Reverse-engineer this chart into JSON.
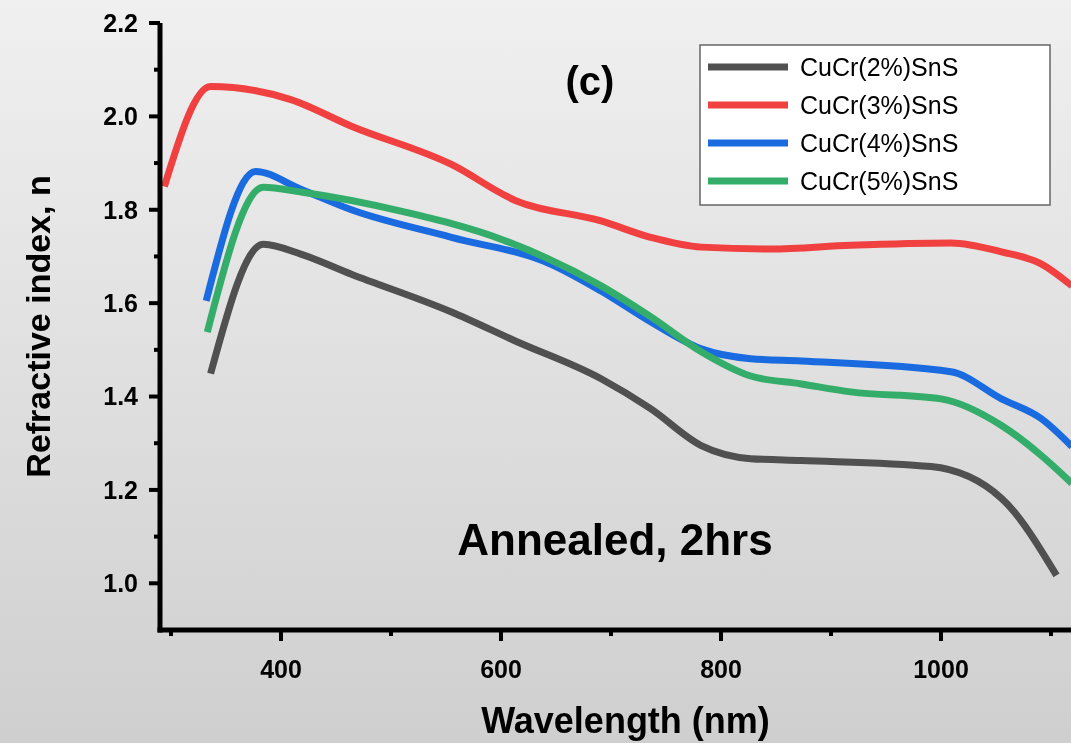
{
  "chart_data": {
    "type": "line",
    "xlabel": "Wavelength (nm)",
    "ylabel": "Refractive index, n",
    "xlim": [
      290,
      1120
    ],
    "ylim": [
      0.9,
      2.2
    ],
    "xticks": [
      {
        "value": 300,
        "label": null
      },
      400,
      {
        "value": 500,
        "label": null
      },
      600,
      {
        "value": 700,
        "label": null
      },
      800,
      {
        "value": 900,
        "label": null
      },
      1000,
      {
        "value": 1100,
        "label": null
      }
    ],
    "yticks": [
      {
        "value": 1,
        "label": "1.0"
      },
      {
        "value": 1.1,
        "label": null
      },
      1.2,
      {
        "value": 1.3,
        "label": null
      },
      1.4,
      {
        "value": 1.5,
        "label": null
      },
      1.6,
      {
        "value": 1.7,
        "label": null
      },
      1.8,
      {
        "value": 1.9,
        "label": null
      },
      {
        "value": 2,
        "label": "2.0"
      },
      {
        "value": 2.1,
        "label": null
      },
      2.2
    ],
    "legend": "top right",
    "grid": false,
    "marker": "none",
    "line_style": "solid",
    "annotations": [
      "(c)",
      "Annealed, 2hrs"
    ],
    "series": [
      {
        "name": "CuCr(2%)SnS",
        "color": "#505050",
        "x": [
          336,
          384,
          418,
          464,
          555,
          613,
          691,
          736,
          782,
          827,
          873,
          991,
          1055,
          1105
        ],
        "values": [
          1.449,
          1.726,
          1.705,
          1.662,
          1.581,
          1.519,
          1.438,
          1.374,
          1.295,
          1.267,
          1.263,
          1.25,
          1.182,
          1.017
        ]
      },
      {
        "name": "CuCr(3%)SnS",
        "color": "#f04040",
        "x": [
          294,
          336,
          409,
          464,
          555,
          613,
          691,
          736,
          782,
          845,
          918,
          1009,
          1055,
          1091,
          1119
        ],
        "values": [
          1.85,
          2.064,
          2.036,
          1.979,
          1.897,
          1.82,
          1.776,
          1.741,
          1.72,
          1.716,
          1.724,
          1.729,
          1.71,
          1.684,
          1.637
        ]
      },
      {
        "name": "CuCr(4%)SnS",
        "color": "#1a6be0",
        "x": [
          332,
          377,
          418,
          464,
          555,
          645,
          691,
          736,
          782,
          827,
          873,
          1009,
          1055,
          1091,
          1119
        ],
        "values": [
          1.605,
          1.882,
          1.844,
          1.8,
          1.741,
          1.684,
          1.626,
          1.56,
          1.502,
          1.481,
          1.476,
          1.453,
          1.395,
          1.353,
          1.293
        ]
      },
      {
        "name": "CuCr(5%)SnS",
        "color": "#35ad6a",
        "x": [
          333,
          384,
          418,
          509,
          600,
          691,
          736,
          782,
          827,
          873,
          918,
          1000,
          1055,
          1091,
          1119
        ],
        "values": [
          1.538,
          1.848,
          1.838,
          1.797,
          1.737,
          1.637,
          1.571,
          1.496,
          1.444,
          1.427,
          1.41,
          1.395,
          1.338,
          1.274,
          1.214
        ]
      }
    ]
  }
}
